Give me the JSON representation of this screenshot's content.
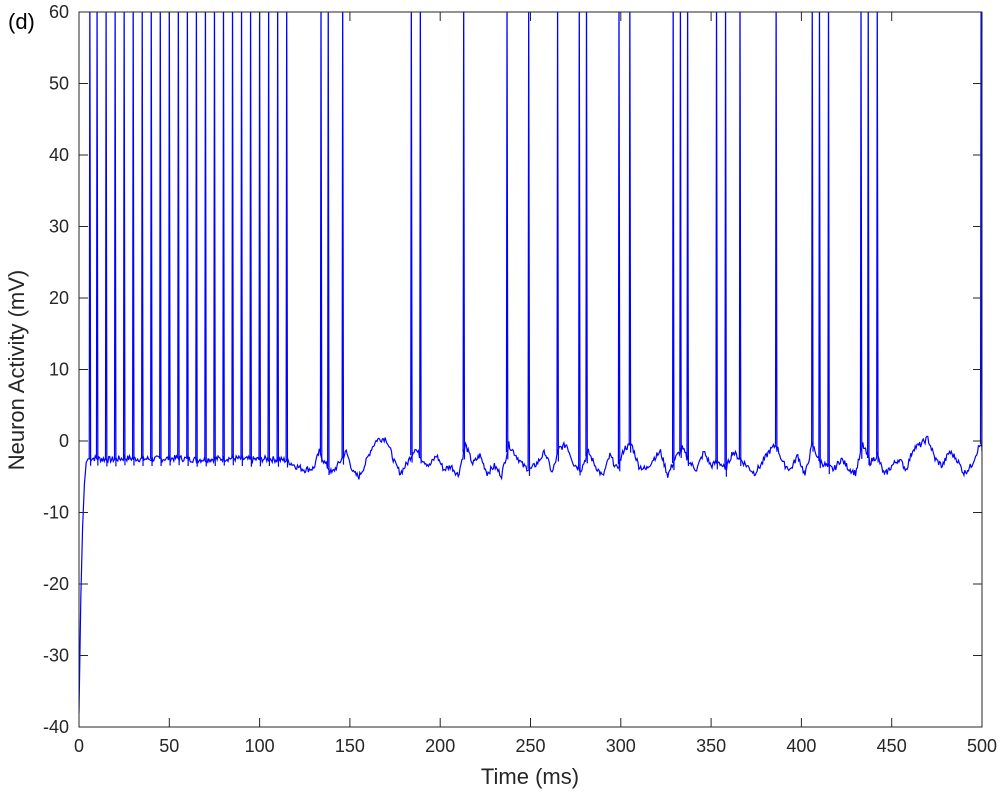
{
  "panel_label": "(d)",
  "colors": {
    "trace": "#0000ff",
    "axes": "#262626",
    "background": "#ffffff"
  },
  "chart_data": {
    "type": "line",
    "title": "",
    "xlabel": "Time (ms)",
    "ylabel": "Neuron Activity (mV)",
    "xlim": [
      0,
      500
    ],
    "ylim": [
      -40,
      60
    ],
    "xticks": [
      0,
      50,
      100,
      150,
      200,
      250,
      300,
      350,
      400,
      450,
      500
    ],
    "yticks": [
      -40,
      -30,
      -20,
      -10,
      0,
      10,
      20,
      30,
      40,
      50,
      60
    ],
    "grid": false,
    "legend": "none",
    "series": [
      {
        "color": "#0000ff",
        "initial_value": -38,
        "resting_level_early": -2.5,
        "resting_level_late": -2.5,
        "spike_peak": 60,
        "spike_times": [
          6,
          10,
          15,
          20,
          25,
          30,
          35,
          40,
          45,
          50,
          55,
          60,
          65,
          70,
          75,
          80,
          85,
          90,
          95,
          100,
          105,
          110,
          115,
          134,
          138,
          146,
          184,
          189,
          213,
          237,
          249,
          265,
          277,
          281,
          299,
          305,
          329,
          333,
          337,
          353,
          358,
          366,
          386,
          406,
          410,
          415,
          433,
          437,
          442,
          499.5
        ],
        "x": [
          0,
          0.5,
          1,
          2,
          3,
          4,
          5,
          8,
          12,
          18,
          25,
          35,
          45,
          55,
          65,
          75,
          85,
          95,
          105,
          115,
          120,
          125,
          130,
          133,
          136,
          140,
          143,
          148,
          152,
          155,
          158,
          162,
          165,
          170,
          175,
          178,
          182,
          186,
          190,
          194,
          198,
          202,
          206,
          210,
          214,
          218,
          222,
          226,
          230,
          234,
          238,
          242,
          246,
          250,
          254,
          258,
          262,
          266,
          270,
          274,
          278,
          282,
          286,
          290,
          294,
          298,
          302,
          306,
          310,
          314,
          318,
          322,
          326,
          330,
          334,
          338,
          342,
          346,
          350,
          354,
          358,
          362,
          366,
          370,
          374,
          378,
          382,
          386,
          390,
          394,
          398,
          402,
          406,
          410,
          414,
          418,
          422,
          426,
          430,
          434,
          438,
          442,
          446,
          450,
          454,
          458,
          462,
          466,
          470,
          474,
          478,
          482,
          486,
          490,
          494,
          498,
          500
        ],
        "y": [
          -38,
          -30,
          -22,
          -12,
          -6,
          -3,
          -2.5,
          -2.4,
          -2.5,
          -2.6,
          -2.4,
          -2.5,
          -2.5,
          -2.4,
          -2.6,
          -2.5,
          -2.4,
          -2.6,
          -2.5,
          -2.7,
          -3.5,
          -4,
          -3.8,
          -1.5,
          -3,
          -4.5,
          -3.5,
          -1.5,
          -4.5,
          -5,
          -3.5,
          -1,
          0.2,
          0.4,
          -3.2,
          -4.5,
          -3,
          -1,
          -2.5,
          -3.5,
          -2,
          -4,
          -3.5,
          -4.8,
          -0.5,
          -3.2,
          -2,
          -4.5,
          -3.5,
          -4.8,
          -0.5,
          -2,
          -3.5,
          -4,
          -3,
          -1.5,
          -4.5,
          -1,
          -0.5,
          -3.2,
          -4,
          -1.5,
          -3.5,
          -5,
          -2,
          -4,
          -1,
          -0.5,
          -3.5,
          -4,
          -2.5,
          -1.5,
          -4.8,
          -2.5,
          -1,
          -3,
          -4,
          -1.5,
          -3.5,
          -2.8,
          -4,
          -1.5,
          -2.5,
          -3.5,
          -4.5,
          -3.2,
          -1.5,
          -0.5,
          -3.2,
          -4,
          -2,
          -4.8,
          -0.5,
          -2.8,
          -3.5,
          -4,
          -2.5,
          -3.8,
          -4.5,
          -0.5,
          -3,
          -2,
          -4.8,
          -3.5,
          -2.5,
          -4,
          -1,
          -0.5,
          0.4,
          -2.5,
          -3.5,
          -1.5,
          -2.5,
          -4.5,
          -3.5,
          -1,
          -0.2
        ]
      }
    ]
  }
}
